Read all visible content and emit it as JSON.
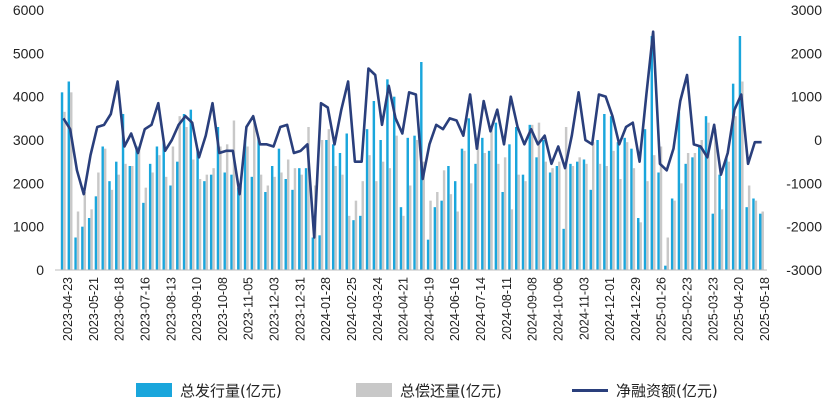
{
  "chart_data": {
    "type": "bar",
    "title": "",
    "x_tick_labels": [
      "2023-04-23",
      "2023-05-21",
      "2023-06-18",
      "2023-07-16",
      "2023-08-13",
      "2023-09-10",
      "2023-10-08",
      "2023-11-05",
      "2023-12-03",
      "2023-12-31",
      "2024-01-28",
      "2024-02-25",
      "2024-03-24",
      "2024-04-21",
      "2024-05-19",
      "2024-06-16",
      "2024-07-14",
      "2024-08-11",
      "2024-09-08",
      "2024-10-06",
      "2024-11-03",
      "2024-12-01",
      "2024-12-29",
      "2025-01-26",
      "2025-02-23",
      "2025-03-23",
      "2025-04-20",
      "2025-05-18"
    ],
    "left_axis": {
      "min": 0,
      "max": 6000,
      "ticks": [
        "0",
        "1000",
        "2000",
        "3000",
        "4000",
        "5000",
        "6000"
      ]
    },
    "right_axis": {
      "min": -3000,
      "max": 3000,
      "ticks": [
        "-3000",
        "-2000",
        "-1000",
        "0",
        "1000",
        "2000",
        "3000"
      ]
    },
    "legend_position": "bottom",
    "grid": false,
    "series": [
      {
        "name": "总发行量(亿元)",
        "type": "bar",
        "axis": "left",
        "color": "#1aa6dc",
        "values": [
          4100,
          4350,
          750,
          1000,
          1200,
          1700,
          2850,
          2050,
          2500,
          3600,
          2400,
          2850,
          1550,
          2450,
          2850,
          2950,
          1950,
          2500,
          3600,
          3700,
          2800,
          2050,
          2200,
          3300,
          2250,
          2200,
          1900,
          3000,
          2150,
          3050,
          1800,
          2400,
          2800,
          2100,
          1850,
          2350,
          2350,
          750,
          800,
          3000,
          2900,
          2700,
          3150,
          1150,
          1250,
          3250,
          3900,
          3000,
          4400,
          4000,
          1450,
          3050,
          3100,
          4800,
          700,
          1450,
          1600,
          2400,
          2050,
          2800,
          3500,
          2450,
          3050,
          2750,
          3400,
          1800,
          2900,
          3300,
          2200,
          3350,
          2600,
          3000,
          2250,
          2400,
          950,
          2450,
          2500,
          2550,
          1850,
          3000,
          3600,
          3550,
          2950,
          3050,
          2800,
          1200,
          3250,
          5400,
          2250,
          100,
          1650,
          3650,
          2450,
          2600,
          2850,
          3550,
          1300,
          2200,
          2600,
          4300,
          5400,
          1450,
          1650,
          1300
        ],
        "label": "总发行量(亿元)"
      },
      {
        "name": "总偿还量(亿元)",
        "type": "bar",
        "axis": "left",
        "color": "#c8c8c8",
        "values": [
          3650,
          4100,
          1350,
          1800,
          1400,
          2250,
          2800,
          1850,
          2200,
          2450,
          2400,
          2850,
          1900,
          2250,
          2650,
          2150,
          2850,
          3550,
          3300,
          2550,
          2100,
          2200,
          2350,
          2850,
          2900,
          3450,
          1950,
          2850,
          3400,
          2200,
          1950,
          2150,
          2250,
          2550,
          2350,
          2200,
          3300,
          1950,
          3000,
          3250,
          2400,
          2200,
          1250,
          1600,
          2050,
          2650,
          2050,
          2500,
          2350,
          3100,
          1250,
          1950,
          3000,
          2500,
          1600,
          1800,
          2300,
          1750,
          1350,
          2750,
          2000,
          2950,
          2700,
          3300,
          2450,
          2600,
          1400,
          2200,
          2050,
          3350,
          3400,
          2500,
          2350,
          2500,
          3300,
          2400,
          2600,
          2450,
          2950,
          2450,
          2400,
          2750,
          2100,
          2950,
          2350,
          1100,
          2050,
          2650,
          2850,
          750,
          1600,
          2000,
          2700,
          2700,
          3000,
          3400,
          3250,
          1400,
          2500,
          3550,
          4350,
          1950,
          1600,
          1350
        ],
        "label": "总偿还量(亿元)"
      },
      {
        "name": "净融资额(亿元)",
        "type": "line",
        "axis": "right",
        "color": "#2a3f7c",
        "values": [
          500,
          250,
          -700,
          -1250,
          -350,
          300,
          350,
          600,
          1350,
          -150,
          150,
          -300,
          250,
          350,
          850,
          -250,
          0,
          350,
          550,
          400,
          -400,
          100,
          850,
          -300,
          -250,
          -250,
          -1250,
          300,
          550,
          -100,
          -100,
          -150,
          300,
          350,
          -300,
          -250,
          -100,
          -2250,
          850,
          750,
          -100,
          700,
          1350,
          -500,
          -500,
          1650,
          1500,
          350,
          1250,
          500,
          150,
          1100,
          1050,
          -900,
          -100,
          350,
          250,
          500,
          450,
          100,
          1050,
          -200,
          900,
          200,
          700,
          -100,
          1000,
          300,
          -100,
          250,
          -100,
          100,
          -550,
          -150,
          -650,
          100,
          1100,
          0,
          -100,
          1050,
          1000,
          550,
          -100,
          300,
          400,
          -500,
          1050,
          2500,
          -550,
          -700,
          -200,
          900,
          1500,
          -100,
          -150,
          -400,
          350,
          -800,
          -300,
          700,
          1050,
          -550,
          -50,
          -50
        ],
        "label": "净融资额(亿元)"
      }
    ]
  }
}
